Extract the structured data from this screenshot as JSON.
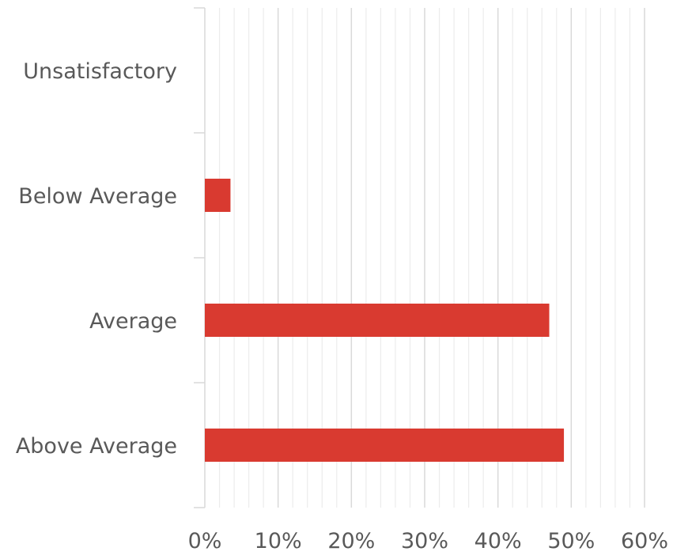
{
  "chart_data": {
    "type": "bar",
    "orientation": "horizontal",
    "categories": [
      "Unsatisfactory",
      "Below Average",
      "Average",
      "Above Average"
    ],
    "values": [
      0,
      3.5,
      47,
      49
    ],
    "xlim": [
      0,
      60
    ],
    "major_ticks": [
      0,
      10,
      20,
      30,
      40,
      50,
      60
    ],
    "tick_labels": [
      "0%",
      "10%",
      "20%",
      "30%",
      "40%",
      "50%",
      "60%"
    ],
    "minor_step": 2,
    "grid": true,
    "legend": "none",
    "bar_color": "#d93a30",
    "major_grid_color": "#d9d9d9",
    "minor_grid_color": "#ececec"
  }
}
